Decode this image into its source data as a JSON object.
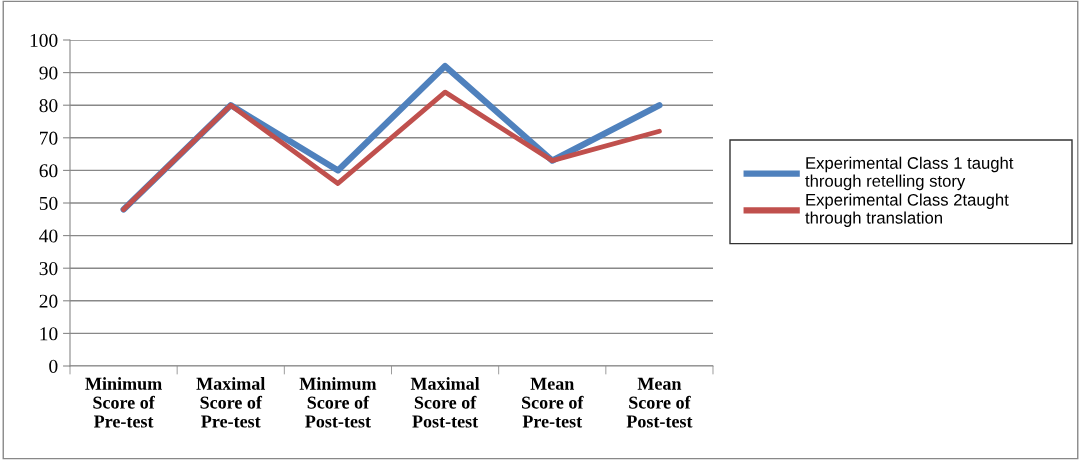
{
  "chart_data": {
    "type": "line",
    "categories": [
      "Minimum\nScore of\nPre-test",
      "Maximal\nScore of\nPre-test",
      "Minimum\nScore of\nPost-test",
      "Maximal\nScore of\nPost-test",
      "Mean\nScore of\nPre-test",
      "Mean\nScore of\nPost-test"
    ],
    "series": [
      {
        "name": "Experimental Class 1 taught\nthrough retelling story",
        "color": "#4f81bd",
        "values": [
          48,
          80,
          60,
          92,
          63,
          80
        ]
      },
      {
        "name": "Experimental Class 2taught\nthrough translation",
        "color": "#c0504d",
        "values": [
          48,
          80,
          56,
          84,
          63,
          72
        ]
      }
    ],
    "ylim": [
      0,
      100
    ],
    "yticks": [
      0,
      10,
      20,
      30,
      40,
      50,
      60,
      70,
      80,
      90,
      100
    ],
    "grid": "y",
    "legend": "right",
    "marker": "none",
    "line_style": "solid"
  }
}
